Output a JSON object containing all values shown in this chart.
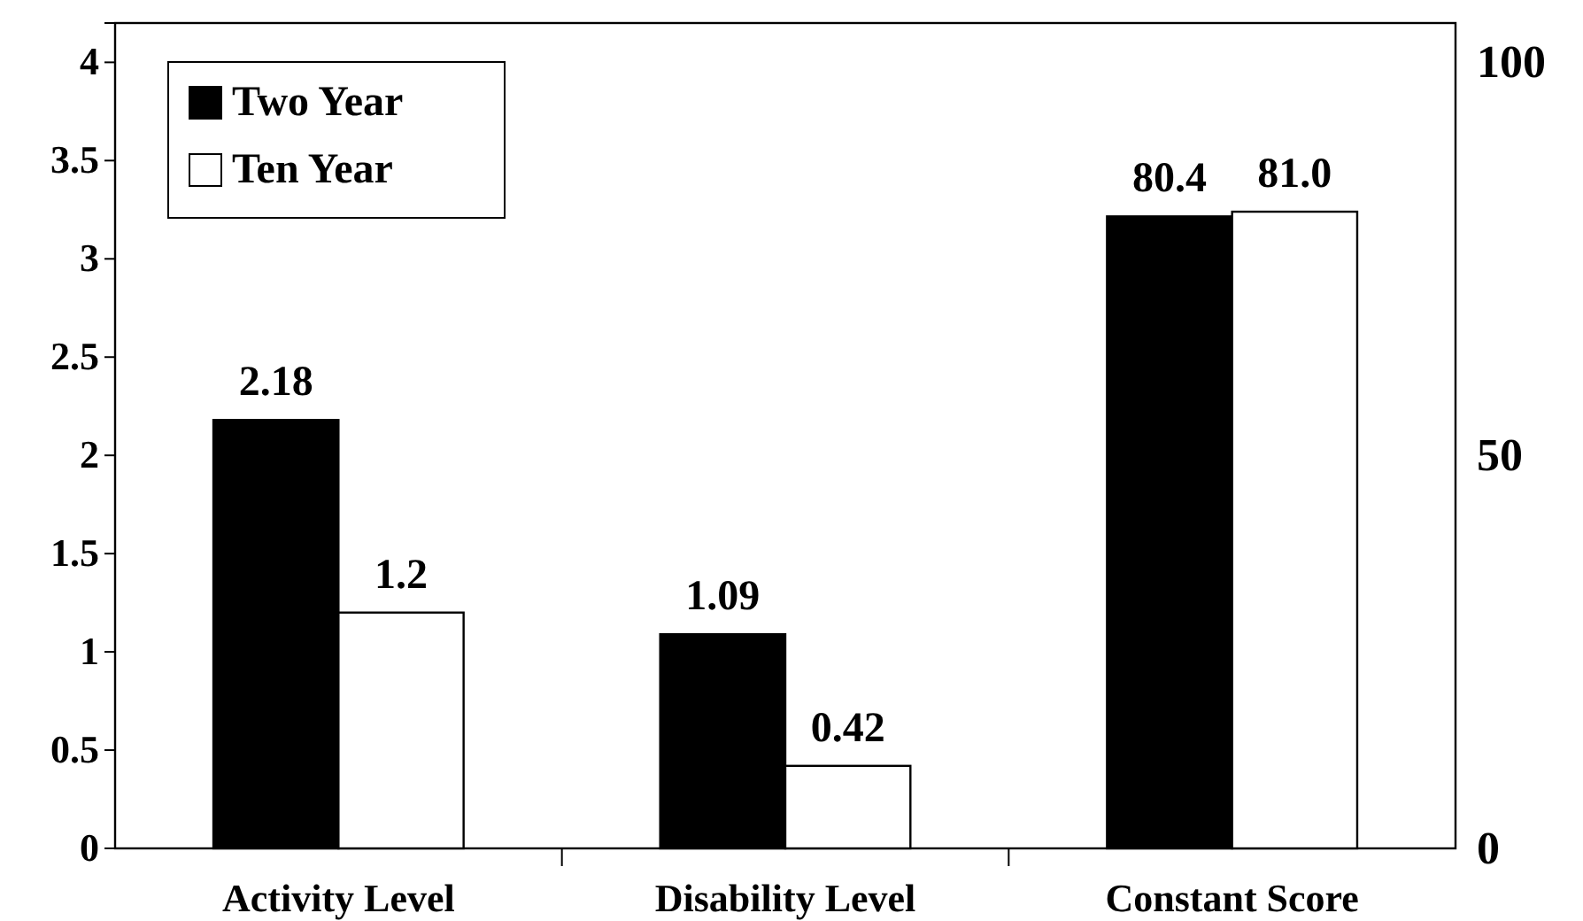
{
  "chart_data": {
    "type": "bar",
    "categories": [
      "Activity Level",
      "Disability Level",
      "Constant Score"
    ],
    "series": [
      {
        "name": "Two Year",
        "color": "#000000",
        "values": [
          2.18,
          1.09,
          null
        ],
        "value_labels": [
          "2.18",
          "1.09",
          null
        ]
      },
      {
        "name": "Ten Year",
        "color": "#ffffff",
        "values": [
          1.2,
          0.42,
          null
        ],
        "value_labels": [
          "1.2",
          "0.42",
          null
        ]
      },
      {
        "color": "#000000",
        "values": [
          null,
          null,
          80.4
        ],
        "axis": "y2",
        "value_labels": [
          null,
          null,
          "80.4"
        ]
      },
      {
        "color": "#ffffff",
        "values": [
          null,
          null,
          81.0
        ],
        "axis": "y2",
        "value_labels": [
          null,
          null,
          "81.0"
        ]
      }
    ],
    "ylim": [
      0,
      4.2
    ],
    "yticks": [
      0,
      0.5,
      1,
      1.5,
      2,
      2.5,
      3,
      3.5,
      4
    ],
    "y2lim": [
      0,
      105
    ],
    "y2ticks": [
      0,
      50,
      100
    ],
    "legend": "top left",
    "grid": false
  }
}
